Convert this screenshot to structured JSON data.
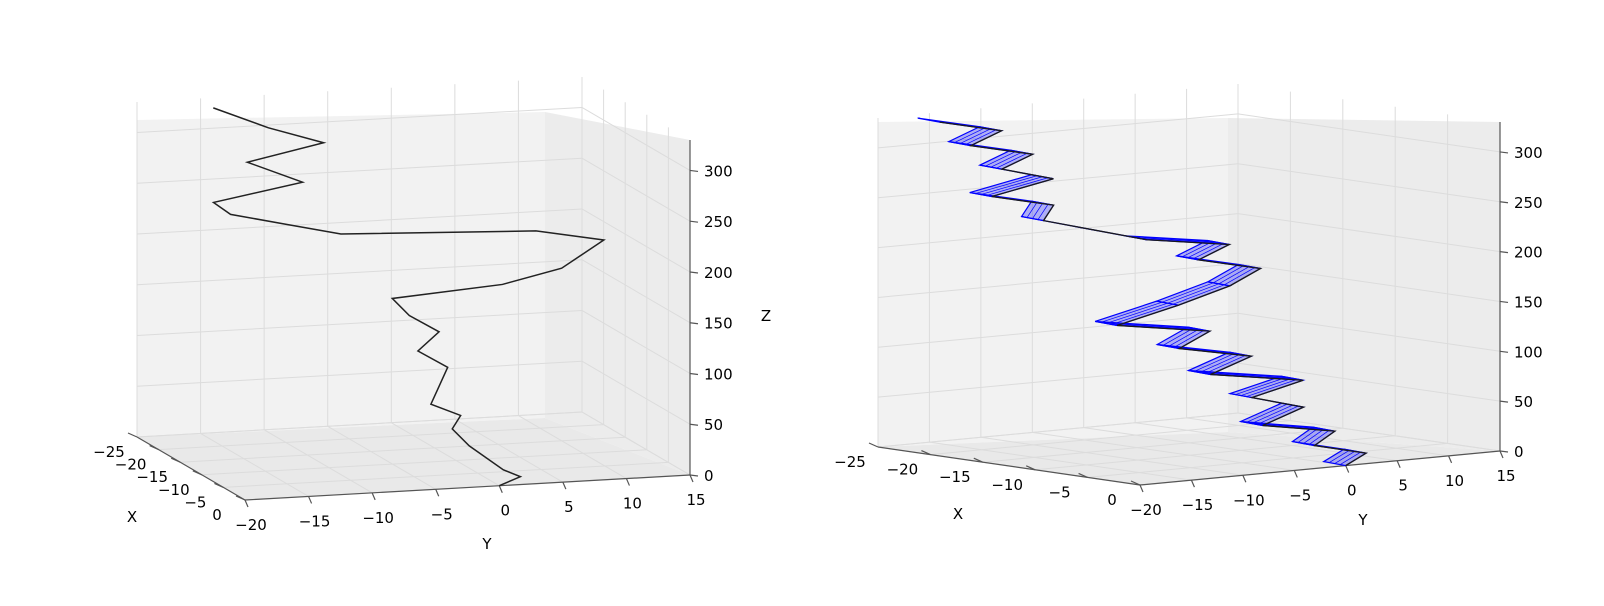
{
  "chart_data": [
    {
      "type": "line3d",
      "xlabel": "X",
      "ylabel": "Y",
      "zlabel": "Z",
      "x_ticks": [
        "−25",
        "−20",
        "−15",
        "−10",
        "−5",
        "0"
      ],
      "y_ticks": [
        "−20",
        "−15",
        "−10",
        "−5",
        "0",
        "5",
        "10",
        "15"
      ],
      "z_ticks": [
        "0",
        "50",
        "100",
        "150",
        "200",
        "250",
        "300"
      ],
      "xlim": [
        -25,
        0
      ],
      "ylim": [
        -20,
        15
      ],
      "zlim": [
        0,
        330
      ],
      "line_color": "#222222",
      "points": [
        [
          0,
          0,
          0
        ],
        [
          -1,
          2,
          5
        ],
        [
          -2,
          1,
          10
        ],
        [
          -3,
          0,
          20
        ],
        [
          -4,
          -1,
          30
        ],
        [
          -5,
          -2,
          45
        ],
        [
          -6,
          -1,
          55
        ],
        [
          -7,
          -3,
          65
        ],
        [
          -8,
          -2,
          80
        ],
        [
          -9,
          -1,
          95
        ],
        [
          -10,
          -3,
          110
        ],
        [
          -11,
          -1,
          125
        ],
        [
          -12,
          -3,
          140
        ],
        [
          -13,
          -4,
          155
        ],
        [
          -14,
          5,
          160
        ],
        [
          -15,
          10,
          170
        ],
        [
          -16,
          12,
          180
        ],
        [
          -17,
          14,
          190
        ],
        [
          -18,
          9,
          200
        ],
        [
          -19,
          -6,
          205
        ],
        [
          -20,
          -10,
          215
        ],
        [
          -21,
          -14,
          225
        ],
        [
          -22,
          -15,
          235
        ],
        [
          -22,
          -8,
          250
        ],
        [
          -23,
          -12,
          270
        ],
        [
          -23,
          -6,
          285
        ],
        [
          -24,
          -10,
          300
        ],
        [
          -25,
          -14,
          320
        ]
      ]
    },
    {
      "type": "ribbon3d",
      "xlabel": "X",
      "ylabel": "Y",
      "x_ticks": [
        "−25",
        "−20",
        "−15",
        "−10",
        "−5",
        "0"
      ],
      "y_ticks": [
        "−20",
        "−15",
        "−10",
        "−5",
        "0",
        "5",
        "10",
        "15"
      ],
      "z_ticks": [
        "0",
        "50",
        "100",
        "150",
        "200",
        "250",
        "300"
      ],
      "xlim": [
        -25,
        0
      ],
      "ylim": [
        -20,
        15
      ],
      "zlim": [
        0,
        330
      ],
      "line_color": "#1a1a1a",
      "fill_color": "#0000ff",
      "points": [
        [
          0,
          0,
          0
        ],
        [
          -1,
          3,
          8
        ],
        [
          -2,
          -1,
          18
        ],
        [
          -3,
          2,
          28
        ],
        [
          -4,
          -4,
          38
        ],
        [
          -5,
          1,
          50
        ],
        [
          -6,
          -3,
          62
        ],
        [
          -7,
          3,
          72
        ],
        [
          -8,
          -5,
          84
        ],
        [
          -9,
          0,
          96
        ],
        [
          -10,
          -6,
          108
        ],
        [
          -11,
          -2,
          120
        ],
        [
          -12,
          -10,
          132
        ],
        [
          -13,
          -3,
          144
        ],
        [
          -14,
          3,
          156
        ],
        [
          -15,
          7,
          168
        ],
        [
          -16,
          2,
          180
        ],
        [
          -17,
          6,
          190
        ],
        [
          -18,
          -1,
          200
        ],
        [
          -19,
          -5,
          212
        ],
        [
          -20,
          -9,
          224
        ],
        [
          -21,
          -7,
          236
        ],
        [
          -22,
          -12,
          248
        ],
        [
          -22,
          -6,
          260
        ],
        [
          -23,
          -10,
          272
        ],
        [
          -23,
          -7,
          284
        ],
        [
          -24,
          -12,
          296
        ],
        [
          -24,
          -9,
          308
        ],
        [
          -25,
          -14,
          320
        ]
      ]
    }
  ]
}
